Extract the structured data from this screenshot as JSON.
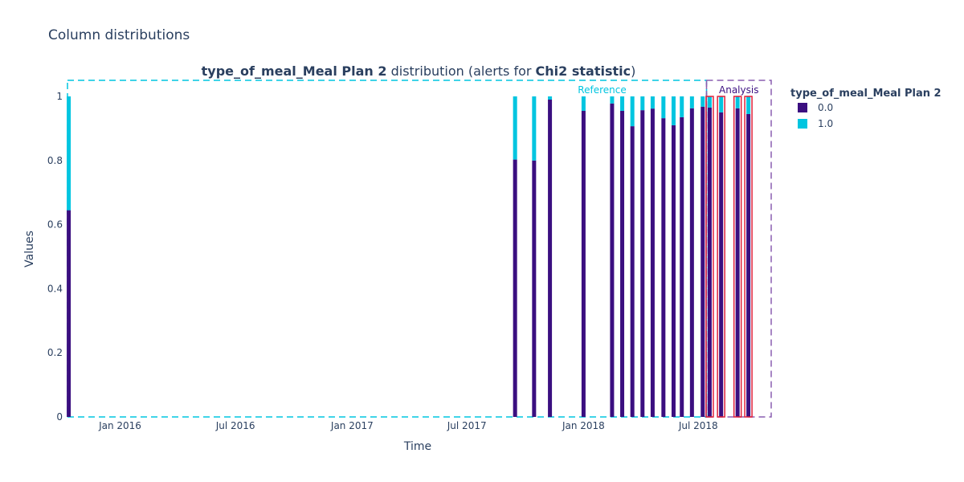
{
  "page": {
    "title": "Column distributions"
  },
  "chart_data": {
    "type": "bar",
    "stacked": true,
    "title_bold": "type_of_meal_Meal Plan 2",
    "title_mid": " distribution (alerts for ",
    "title_metric": "Chi2 statistic",
    "title_end": ")",
    "xlabel": "Time",
    "ylabel": "Values",
    "ylim": [
      0,
      1
    ],
    "yticks": [
      0,
      0.2,
      0.4,
      0.6,
      0.8,
      1
    ],
    "ytick_labels": [
      "0",
      "0.2",
      "0.4",
      "0.6",
      "0.8",
      "1"
    ],
    "xtick_labels": [
      "Jan 2016",
      "Jul 2016",
      "Jan 2017",
      "Jul 2017",
      "Jan 2018",
      "Jul 2018"
    ],
    "xticks": [
      "2016-01-01",
      "2016-07-01",
      "2017-01-01",
      "2017-07-01",
      "2018-01-01",
      "2018-07-01"
    ],
    "xlim": [
      "2015-10-10",
      "2018-10-24"
    ],
    "legend_title": "type_of_meal_Meal Plan 2",
    "legend_position": "right",
    "series": [
      {
        "name": "0.0",
        "color": "#3b0f80"
      },
      {
        "name": "1.0",
        "color": "#00c5e0"
      }
    ],
    "periods": [
      {
        "label": "Reference",
        "start": "2015-10-10",
        "end": "2018-07-14",
        "color": "#00c5e0"
      },
      {
        "label": "Analysis",
        "start": "2018-07-14",
        "end": "2018-10-24",
        "color": "#8a5fb0"
      }
    ],
    "bars": [
      {
        "date": "2015-10-12",
        "v0": 0.645,
        "v1": 0.355,
        "period": "reference",
        "alert": false
      },
      {
        "date": "2017-09-15",
        "v0": 0.803,
        "v1": 0.197,
        "period": "reference",
        "alert": false
      },
      {
        "date": "2017-10-15",
        "v0": 0.8,
        "v1": 0.2,
        "period": "reference",
        "alert": false
      },
      {
        "date": "2017-11-09",
        "v0": 0.99,
        "v1": 0.01,
        "period": "reference",
        "alert": false
      },
      {
        "date": "2018-01-01",
        "v0": 0.955,
        "v1": 0.045,
        "period": "reference",
        "alert": false
      },
      {
        "date": "2018-02-15",
        "v0": 0.978,
        "v1": 0.022,
        "period": "reference",
        "alert": false
      },
      {
        "date": "2018-03-03",
        "v0": 0.955,
        "v1": 0.045,
        "period": "reference",
        "alert": false
      },
      {
        "date": "2018-03-19",
        "v0": 0.907,
        "v1": 0.093,
        "period": "reference",
        "alert": false
      },
      {
        "date": "2018-04-04",
        "v0": 0.957,
        "v1": 0.043,
        "period": "reference",
        "alert": false
      },
      {
        "date": "2018-04-20",
        "v0": 0.962,
        "v1": 0.038,
        "period": "reference",
        "alert": false
      },
      {
        "date": "2018-05-07",
        "v0": 0.932,
        "v1": 0.068,
        "period": "reference",
        "alert": false
      },
      {
        "date": "2018-05-23",
        "v0": 0.91,
        "v1": 0.09,
        "period": "reference",
        "alert": false
      },
      {
        "date": "2018-06-05",
        "v0": 0.935,
        "v1": 0.065,
        "period": "reference",
        "alert": false
      },
      {
        "date": "2018-06-21",
        "v0": 0.963,
        "v1": 0.037,
        "period": "reference",
        "alert": false
      },
      {
        "date": "2018-07-08",
        "v0": 0.968,
        "v1": 0.032,
        "period": "reference",
        "alert": false
      },
      {
        "date": "2018-07-19",
        "v0": 0.965,
        "v1": 0.035,
        "period": "analysis",
        "alert": true
      },
      {
        "date": "2018-08-06",
        "v0": 0.95,
        "v1": 0.05,
        "period": "analysis",
        "alert": true
      },
      {
        "date": "2018-09-01",
        "v0": 0.963,
        "v1": 0.037,
        "period": "analysis",
        "alert": true
      },
      {
        "date": "2018-09-18",
        "v0": 0.945,
        "v1": 0.055,
        "period": "analysis",
        "alert": true
      }
    ]
  }
}
